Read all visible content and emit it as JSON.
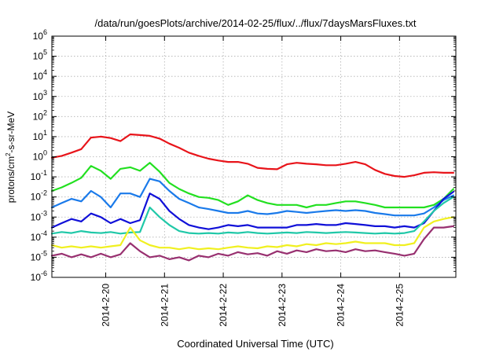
{
  "chart_data": {
    "type": "line",
    "title": "/data/run/goesPlots/archive/2014-02-25/flux/../flux/7daysMarsFluxes.txt",
    "xlabel": "Coordinated Universal Time (UTC)",
    "ylabel": "protons/cm²-s-sr-MeV",
    "ylabel_parts": {
      "pre": "protons/cm",
      "sup": "2",
      "post": "-s-sr-MeV"
    },
    "y_scale": "log",
    "ylim": [
      1e-06,
      1000000.0
    ],
    "xlim": [
      "2014-02-19T02:00",
      "2014-02-25T23:00"
    ],
    "x_ticks": [
      "2014-2-20",
      "2014-2-21",
      "2014-2-22",
      "2014-2-23",
      "2014-2-24",
      "2014-2-25"
    ],
    "x_tick_dates": [
      "2014-02-20T00:00",
      "2014-02-21T00:00",
      "2014-02-22T00:00",
      "2014-02-23T00:00",
      "2014-02-24T00:00",
      "2014-02-25T00:00"
    ],
    "y_tick_exponents": [
      -6,
      -5,
      -4,
      -3,
      -2,
      -1,
      0,
      1,
      2,
      3,
      4,
      5,
      6
    ],
    "grid": true,
    "legend": false,
    "series": [
      {
        "color": "#e8141a",
        "x": [
          "2014-02-19T02:00",
          "2014-02-19T06:00",
          "2014-02-19T10:00",
          "2014-02-19T14:00",
          "2014-02-19T18:00",
          "2014-02-19T22:00",
          "2014-02-20T02:00",
          "2014-02-20T06:00",
          "2014-02-20T10:00",
          "2014-02-20T14:00",
          "2014-02-20T18:00",
          "2014-02-20T22:00",
          "2014-02-21T02:00",
          "2014-02-21T06:00",
          "2014-02-21T10:00",
          "2014-02-21T14:00",
          "2014-02-21T18:00",
          "2014-02-21T22:00",
          "2014-02-22T02:00",
          "2014-02-22T06:00",
          "2014-02-22T10:00",
          "2014-02-22T14:00",
          "2014-02-22T18:00",
          "2014-02-22T22:00",
          "2014-02-23T02:00",
          "2014-02-23T06:00",
          "2014-02-23T10:00",
          "2014-02-23T14:00",
          "2014-02-23T18:00",
          "2014-02-23T22:00",
          "2014-02-24T02:00",
          "2014-02-24T06:00",
          "2014-02-24T10:00",
          "2014-02-24T14:00",
          "2014-02-24T18:00",
          "2014-02-24T22:00",
          "2014-02-25T02:00",
          "2014-02-25T06:00",
          "2014-02-25T10:00",
          "2014-02-25T14:00",
          "2014-02-25T18:00",
          "2014-02-25T22:00"
        ],
        "y": [
          0.9,
          1.1,
          1.6,
          2.4,
          9.0,
          10.0,
          8.5,
          6.0,
          13.0,
          12.0,
          11.0,
          8.0,
          4.5,
          2.8,
          1.6,
          1.1,
          0.8,
          0.65,
          0.55,
          0.55,
          0.45,
          0.28,
          0.25,
          0.24,
          0.42,
          0.5,
          0.45,
          0.42,
          0.38,
          0.38,
          0.45,
          0.55,
          0.42,
          0.22,
          0.14,
          0.11,
          0.1,
          0.12,
          0.16,
          0.17,
          0.16,
          0.16
        ]
      },
      {
        "color": "#22e020",
        "x": [
          "2014-02-19T02:00",
          "2014-02-19T06:00",
          "2014-02-19T10:00",
          "2014-02-19T14:00",
          "2014-02-19T18:00",
          "2014-02-19T22:00",
          "2014-02-20T02:00",
          "2014-02-20T06:00",
          "2014-02-20T10:00",
          "2014-02-20T14:00",
          "2014-02-20T18:00",
          "2014-02-20T22:00",
          "2014-02-21T02:00",
          "2014-02-21T06:00",
          "2014-02-21T10:00",
          "2014-02-21T14:00",
          "2014-02-21T18:00",
          "2014-02-21T22:00",
          "2014-02-22T02:00",
          "2014-02-22T06:00",
          "2014-02-22T10:00",
          "2014-02-22T14:00",
          "2014-02-22T18:00",
          "2014-02-22T22:00",
          "2014-02-23T02:00",
          "2014-02-23T06:00",
          "2014-02-23T10:00",
          "2014-02-23T14:00",
          "2014-02-23T18:00",
          "2014-02-23T22:00",
          "2014-02-24T02:00",
          "2014-02-24T06:00",
          "2014-02-24T10:00",
          "2014-02-24T14:00",
          "2014-02-24T18:00",
          "2014-02-24T22:00",
          "2014-02-25T02:00",
          "2014-02-25T06:00",
          "2014-02-25T10:00",
          "2014-02-25T14:00",
          "2014-02-25T18:00",
          "2014-02-25T22:00"
        ],
        "y": [
          0.02,
          0.03,
          0.05,
          0.09,
          0.35,
          0.2,
          0.08,
          0.25,
          0.3,
          0.2,
          0.5,
          0.18,
          0.05,
          0.025,
          0.015,
          0.01,
          0.009,
          0.007,
          0.004,
          0.006,
          0.012,
          0.007,
          0.005,
          0.004,
          0.004,
          0.004,
          0.003,
          0.004,
          0.004,
          0.005,
          0.006,
          0.006,
          0.005,
          0.004,
          0.003,
          0.003,
          0.003,
          0.003,
          0.003,
          0.004,
          0.008,
          0.025
        ]
      },
      {
        "color": "#1a7aea",
        "x": [
          "2014-02-19T02:00",
          "2014-02-19T06:00",
          "2014-02-19T10:00",
          "2014-02-19T14:00",
          "2014-02-19T18:00",
          "2014-02-19T22:00",
          "2014-02-20T02:00",
          "2014-02-20T06:00",
          "2014-02-20T10:00",
          "2014-02-20T14:00",
          "2014-02-20T18:00",
          "2014-02-20T22:00",
          "2014-02-21T02:00",
          "2014-02-21T06:00",
          "2014-02-21T10:00",
          "2014-02-21T14:00",
          "2014-02-21T18:00",
          "2014-02-21T22:00",
          "2014-02-22T02:00",
          "2014-02-22T06:00",
          "2014-02-22T10:00",
          "2014-02-22T14:00",
          "2014-02-22T18:00",
          "2014-02-22T22:00",
          "2014-02-23T02:00",
          "2014-02-23T06:00",
          "2014-02-23T10:00",
          "2014-02-23T14:00",
          "2014-02-23T18:00",
          "2014-02-23T22:00",
          "2014-02-24T02:00",
          "2014-02-24T06:00",
          "2014-02-24T10:00",
          "2014-02-24T14:00",
          "2014-02-24T18:00",
          "2014-02-24T22:00",
          "2014-02-25T02:00",
          "2014-02-25T06:00",
          "2014-02-25T10:00",
          "2014-02-25T14:00",
          "2014-02-25T18:00",
          "2014-02-25T22:00"
        ],
        "y": [
          0.003,
          0.005,
          0.008,
          0.006,
          0.02,
          0.01,
          0.003,
          0.015,
          0.015,
          0.01,
          0.08,
          0.06,
          0.02,
          0.008,
          0.005,
          0.003,
          0.0025,
          0.002,
          0.0016,
          0.0016,
          0.002,
          0.0015,
          0.0014,
          0.0016,
          0.002,
          0.0018,
          0.0016,
          0.0018,
          0.002,
          0.0022,
          0.002,
          0.0022,
          0.002,
          0.0016,
          0.0014,
          0.0012,
          0.0012,
          0.0012,
          0.0015,
          0.003,
          0.007,
          0.012
        ]
      },
      {
        "color": "#1010d8",
        "x": [
          "2014-02-19T02:00",
          "2014-02-19T06:00",
          "2014-02-19T10:00",
          "2014-02-19T14:00",
          "2014-02-19T18:00",
          "2014-02-19T22:00",
          "2014-02-20T02:00",
          "2014-02-20T06:00",
          "2014-02-20T10:00",
          "2014-02-20T14:00",
          "2014-02-20T18:00",
          "2014-02-20T22:00",
          "2014-02-21T02:00",
          "2014-02-21T06:00",
          "2014-02-21T10:00",
          "2014-02-21T14:00",
          "2014-02-21T18:00",
          "2014-02-21T22:00",
          "2014-02-22T02:00",
          "2014-02-22T06:00",
          "2014-02-22T10:00",
          "2014-02-22T14:00",
          "2014-02-22T18:00",
          "2014-02-22T22:00",
          "2014-02-23T02:00",
          "2014-02-23T06:00",
          "2014-02-23T10:00",
          "2014-02-23T14:00",
          "2014-02-23T18:00",
          "2014-02-23T22:00",
          "2014-02-24T02:00",
          "2014-02-24T06:00",
          "2014-02-24T10:00",
          "2014-02-24T14:00",
          "2014-02-24T18:00",
          "2014-02-24T22:00",
          "2014-02-25T02:00",
          "2014-02-25T06:00",
          "2014-02-25T10:00",
          "2014-02-25T14:00",
          "2014-02-25T18:00",
          "2014-02-25T22:00"
        ],
        "y": [
          0.0003,
          0.0005,
          0.0008,
          0.0006,
          0.0015,
          0.001,
          0.0005,
          0.0008,
          0.0005,
          0.0007,
          0.015,
          0.008,
          0.002,
          0.0008,
          0.0004,
          0.0003,
          0.00025,
          0.0003,
          0.0004,
          0.00035,
          0.0004,
          0.0003,
          0.0003,
          0.0003,
          0.0003,
          0.0004,
          0.0004,
          0.00045,
          0.0004,
          0.0004,
          0.0005,
          0.00045,
          0.0004,
          0.00035,
          0.00035,
          0.0003,
          0.00035,
          0.0003,
          0.0005,
          0.002,
          0.008,
          0.018
        ]
      },
      {
        "color": "#20c8a8",
        "x": [
          "2014-02-19T02:00",
          "2014-02-19T06:00",
          "2014-02-19T10:00",
          "2014-02-19T14:00",
          "2014-02-19T18:00",
          "2014-02-19T22:00",
          "2014-02-20T02:00",
          "2014-02-20T06:00",
          "2014-02-20T10:00",
          "2014-02-20T14:00",
          "2014-02-20T18:00",
          "2014-02-20T22:00",
          "2014-02-21T02:00",
          "2014-02-21T06:00",
          "2014-02-21T10:00",
          "2014-02-21T14:00",
          "2014-02-21T18:00",
          "2014-02-21T22:00",
          "2014-02-22T02:00",
          "2014-02-22T06:00",
          "2014-02-22T10:00",
          "2014-02-22T14:00",
          "2014-02-22T18:00",
          "2014-02-22T22:00",
          "2014-02-23T02:00",
          "2014-02-23T06:00",
          "2014-02-23T10:00",
          "2014-02-23T14:00",
          "2014-02-23T18:00",
          "2014-02-23T22:00",
          "2014-02-24T02:00",
          "2014-02-24T06:00",
          "2014-02-24T10:00",
          "2014-02-24T14:00",
          "2014-02-24T18:00",
          "2014-02-24T22:00",
          "2014-02-25T02:00",
          "2014-02-25T06:00",
          "2014-02-25T10:00",
          "2014-02-25T14:00",
          "2014-02-25T18:00",
          "2014-02-25T22:00"
        ],
        "y": [
          0.00015,
          0.00018,
          0.00016,
          0.0002,
          0.00017,
          0.00016,
          0.00018,
          0.00015,
          0.00017,
          0.00018,
          0.003,
          0.001,
          0.0004,
          0.0002,
          0.00016,
          0.00015,
          0.00016,
          0.00015,
          0.00017,
          0.00016,
          0.00018,
          0.00016,
          0.00015,
          0.00016,
          0.00017,
          0.00016,
          0.00018,
          0.00017,
          0.00016,
          0.00017,
          0.00018,
          0.00017,
          0.00016,
          0.00015,
          0.00016,
          0.00015,
          0.00016,
          0.0002,
          0.0006,
          0.002,
          0.005,
          0.01
        ]
      },
      {
        "color": "#f0f020",
        "x": [
          "2014-02-19T02:00",
          "2014-02-19T06:00",
          "2014-02-19T10:00",
          "2014-02-19T14:00",
          "2014-02-19T18:00",
          "2014-02-19T22:00",
          "2014-02-20T02:00",
          "2014-02-20T06:00",
          "2014-02-20T10:00",
          "2014-02-20T14:00",
          "2014-02-20T18:00",
          "2014-02-20T22:00",
          "2014-02-21T02:00",
          "2014-02-21T06:00",
          "2014-02-21T10:00",
          "2014-02-21T14:00",
          "2014-02-21T18:00",
          "2014-02-21T22:00",
          "2014-02-22T02:00",
          "2014-02-22T06:00",
          "2014-02-22T10:00",
          "2014-02-22T14:00",
          "2014-02-22T18:00",
          "2014-02-22T22:00",
          "2014-02-23T02:00",
          "2014-02-23T06:00",
          "2014-02-23T10:00",
          "2014-02-23T14:00",
          "2014-02-23T18:00",
          "2014-02-23T22:00",
          "2014-02-24T02:00",
          "2014-02-24T06:00",
          "2014-02-24T10:00",
          "2014-02-24T14:00",
          "2014-02-24T18:00",
          "2014-02-24T22:00",
          "2014-02-25T02:00",
          "2014-02-25T06:00",
          "2014-02-25T10:00",
          "2014-02-25T14:00",
          "2014-02-25T18:00",
          "2014-02-25T22:00"
        ],
        "y": [
          4e-05,
          3e-05,
          3.5e-05,
          3e-05,
          3.5e-05,
          3e-05,
          3.5e-05,
          4e-05,
          0.0003,
          7e-05,
          4e-05,
          3e-05,
          3e-05,
          2.5e-05,
          3e-05,
          2.5e-05,
          2.8e-05,
          2.5e-05,
          3e-05,
          3.5e-05,
          3e-05,
          2.8e-05,
          3.5e-05,
          3.2e-05,
          4e-05,
          3.5e-05,
          4.5e-05,
          4e-05,
          5e-05,
          4.5e-05,
          5e-05,
          6e-05,
          5e-05,
          5e-05,
          5e-05,
          4e-05,
          4e-05,
          5e-05,
          0.0003,
          0.0006,
          0.0008,
          0.001
        ]
      },
      {
        "color": "#983070",
        "x": [
          "2014-02-19T02:00",
          "2014-02-19T06:00",
          "2014-02-19T10:00",
          "2014-02-19T14:00",
          "2014-02-19T18:00",
          "2014-02-19T22:00",
          "2014-02-20T02:00",
          "2014-02-20T06:00",
          "2014-02-20T10:00",
          "2014-02-20T14:00",
          "2014-02-20T18:00",
          "2014-02-20T22:00",
          "2014-02-21T02:00",
          "2014-02-21T06:00",
          "2014-02-21T10:00",
          "2014-02-21T14:00",
          "2014-02-21T18:00",
          "2014-02-21T22:00",
          "2014-02-22T02:00",
          "2014-02-22T06:00",
          "2014-02-22T10:00",
          "2014-02-22T14:00",
          "2014-02-22T18:00",
          "2014-02-22T22:00",
          "2014-02-23T02:00",
          "2014-02-23T06:00",
          "2014-02-23T10:00",
          "2014-02-23T14:00",
          "2014-02-23T18:00",
          "2014-02-23T22:00",
          "2014-02-24T02:00",
          "2014-02-24T06:00",
          "2014-02-24T10:00",
          "2014-02-24T14:00",
          "2014-02-24T18:00",
          "2014-02-24T22:00",
          "2014-02-25T02:00",
          "2014-02-25T06:00",
          "2014-02-25T10:00",
          "2014-02-25T14:00",
          "2014-02-25T18:00",
          "2014-02-25T22:00"
        ],
        "y": [
          1.2e-05,
          1.5e-05,
          1e-05,
          1.4e-05,
          1e-05,
          1.5e-05,
          1e-05,
          1.4e-05,
          5e-05,
          2e-05,
          1e-05,
          1.2e-05,
          8e-06,
          1e-05,
          7e-06,
          1.2e-05,
          1e-05,
          1.5e-05,
          1.2e-05,
          1.8e-05,
          1.4e-05,
          1.6e-05,
          1.2e-05,
          2e-05,
          1.5e-05,
          2.2e-05,
          1.8e-05,
          2.5e-05,
          2e-05,
          2.2e-05,
          1.8e-05,
          2.5e-05,
          2e-05,
          2.2e-05,
          1.8e-05,
          1.5e-05,
          1.2e-05,
          1.5e-05,
          8e-05,
          0.0003,
          0.0003,
          0.00035
        ]
      }
    ]
  }
}
